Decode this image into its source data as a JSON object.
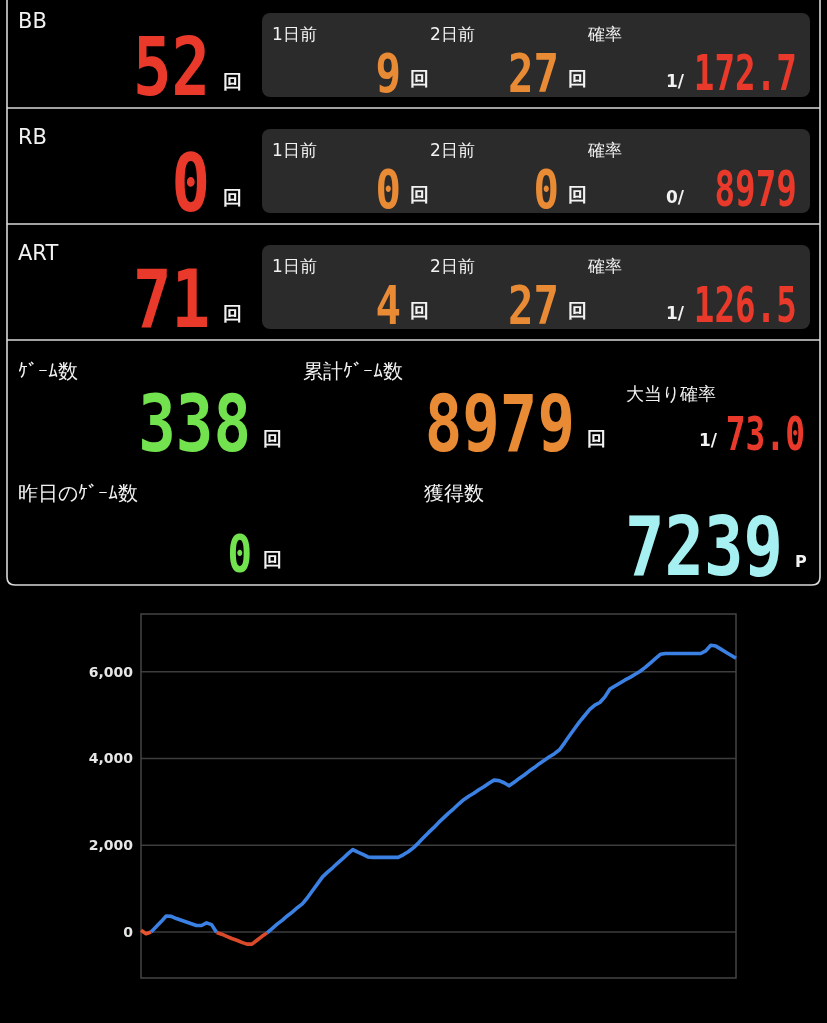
{
  "chart_data": [
    {
      "type": "other",
      "title": "BB",
      "annotations": [
        "52",
        "回",
        "1日前",
        "2日前",
        "確率",
        "9",
        "回",
        "27",
        "回",
        "1/",
        "172.7"
      ]
    },
    {
      "type": "other",
      "title": "RB",
      "annotations": [
        "0",
        "回",
        "1日前",
        "2日前",
        "確率",
        "0",
        "回",
        "0",
        "回",
        "0/",
        "8979"
      ]
    },
    {
      "type": "other",
      "title": "ART",
      "annotations": [
        "71",
        "回",
        "1日前",
        "2日前",
        "確率",
        "4",
        "回",
        "27",
        "回",
        "1/",
        "126.5"
      ]
    },
    {
      "type": "other",
      "annotations": [
        "ｹﾞｰﾑ数",
        "338",
        "回",
        "累計ｹﾞｰﾑ数",
        "8979",
        "回",
        "大当り確率",
        "1/",
        "73.0",
        "昨日のｹﾞｰﾑ数",
        "0",
        "回",
        "獲得数",
        "7239",
        "P"
      ]
    },
    {
      "type": "line",
      "categories": [
        null,
        null,
        null,
        null,
        null,
        null,
        null,
        null,
        null,
        null,
        null,
        null,
        null,
        null,
        null,
        null,
        null,
        null,
        null,
        null,
        null,
        null,
        null,
        null,
        null,
        null,
        null,
        null,
        null,
        null,
        null,
        null,
        null,
        null,
        null,
        null,
        null,
        null,
        null,
        null,
        null,
        null,
        null,
        null,
        null,
        null,
        null,
        null,
        null,
        null,
        null,
        null,
        null,
        null,
        null,
        null,
        null,
        null,
        null,
        null,
        null,
        null,
        null,
        null,
        null,
        null,
        null,
        null,
        null,
        null,
        null,
        null,
        null,
        null,
        null,
        null,
        null,
        null,
        null,
        null,
        null,
        null,
        null,
        null,
        null,
        null,
        null,
        null,
        null,
        null,
        null,
        null,
        null,
        null,
        null,
        null,
        null,
        null,
        null,
        null,
        null,
        null,
        null,
        null,
        null,
        null,
        null,
        null,
        null,
        null,
        null,
        null,
        null,
        null,
        null,
        null,
        null,
        null,
        null
      ],
      "series": [
        {
          "color": "#e65530",
          "values": [
            40,
            -40,
            0,
            null,
            null,
            null,
            null,
            null,
            null,
            null,
            null,
            null,
            null,
            null,
            null,
            null,
            null,
            null,
            null,
            null,
            null,
            null,
            null,
            null,
            null,
            null,
            null,
            null,
            null,
            null,
            null,
            null,
            null,
            null,
            null,
            null,
            null,
            null,
            null,
            null,
            null,
            null,
            null,
            null,
            null,
            null,
            null,
            null,
            null,
            null,
            null,
            null,
            null,
            null,
            null,
            null,
            null,
            null,
            null,
            null,
            null,
            null,
            null,
            null,
            null,
            null,
            null,
            null,
            null,
            null,
            null,
            null,
            null,
            null,
            null,
            null,
            null,
            null,
            null,
            null,
            null,
            null,
            null,
            null,
            null,
            null,
            null,
            null,
            null,
            null,
            null,
            null,
            null,
            null,
            null,
            null,
            null,
            null,
            null,
            null,
            null,
            null,
            null,
            null,
            null,
            null,
            null,
            null,
            null,
            null,
            null,
            null,
            null,
            null,
            null,
            null,
            null,
            null,
            null
          ]
        },
        {
          "color": "#3b80e3",
          "values": [
            null,
            null,
            0,
            120,
            240,
            370,
            360,
            310,
            270,
            230,
            190,
            150,
            150,
            210,
            170,
            -10,
            null,
            null,
            null,
            null,
            null,
            null,
            null,
            null,
            null,
            null,
            null,
            null,
            null,
            null,
            null,
            null,
            null,
            null,
            null,
            null,
            null,
            null,
            null,
            null,
            null,
            null,
            null,
            null,
            null,
            null,
            null,
            null,
            null,
            null,
            null,
            null,
            null,
            null,
            null,
            null,
            null,
            null,
            null,
            null,
            null,
            null,
            null,
            null,
            null,
            null,
            null,
            null,
            null,
            null,
            null,
            null,
            null,
            null,
            null,
            null,
            null,
            null,
            null,
            null,
            null,
            null,
            null,
            null,
            null,
            null,
            null,
            null,
            null,
            null,
            null,
            null,
            null,
            null,
            null,
            null,
            null,
            null,
            null,
            null,
            null,
            null,
            null,
            null,
            null,
            null,
            null,
            null,
            null,
            null,
            null,
            null,
            null,
            null,
            null,
            null,
            null,
            null,
            null
          ]
        },
        {
          "color": "#d94a2a",
          "values": [
            null,
            null,
            null,
            null,
            null,
            null,
            null,
            null,
            null,
            null,
            null,
            null,
            null,
            null,
            null,
            -10,
            -50,
            -100,
            -150,
            -190,
            -240,
            -280,
            -280,
            -190,
            -100,
            -20,
            null,
            null,
            null,
            null,
            null,
            null,
            null,
            null,
            null,
            null,
            null,
            null,
            null,
            null,
            null,
            null,
            null,
            null,
            null,
            null,
            null,
            null,
            null,
            null,
            null,
            null,
            null,
            null,
            null,
            null,
            null,
            null,
            null,
            null,
            null,
            null,
            null,
            null,
            null,
            null,
            null,
            null,
            null,
            null,
            null,
            null,
            null,
            null,
            null,
            null,
            null,
            null,
            null,
            null,
            null,
            null,
            null,
            null,
            null,
            null,
            null,
            null,
            null,
            null,
            null,
            null,
            null,
            null,
            null,
            null,
            null,
            null,
            null,
            null,
            null,
            null,
            null,
            null,
            null,
            null,
            null,
            null,
            null,
            null,
            null,
            null,
            null,
            null,
            null,
            null,
            null,
            null,
            null
          ]
        },
        {
          "color": "#3b80e3",
          "values": [
            null,
            null,
            null,
            null,
            null,
            null,
            null,
            null,
            null,
            null,
            null,
            null,
            null,
            null,
            null,
            null,
            null,
            null,
            null,
            null,
            null,
            null,
            null,
            null,
            null,
            -20,
            80,
            180,
            270,
            370,
            460,
            560,
            650,
            790,
            950,
            1110,
            1270,
            1380,
            1480,
            1590,
            1690,
            1800,
            1900,
            1840,
            1790,
            1730,
            1720,
            1720,
            1720,
            1720,
            1720,
            1720,
            1780,
            1850,
            1940,
            2050,
            2170,
            2290,
            2400,
            2520,
            2630,
            2740,
            2840,
            2950,
            3050,
            3130,
            3200,
            3280,
            3350,
            3430,
            3500,
            3490,
            3440,
            3370,
            3450,
            3540,
            3620,
            3710,
            3790,
            3880,
            3960,
            4040,
            4110,
            4200,
            4360,
            4530,
            4690,
            4850,
            4990,
            5130,
            5230,
            5290,
            5420,
            5600,
            5670,
            5740,
            5810,
            5870,
            5940,
            6010,
            6100,
            6200,
            6300,
            6400,
            6420,
            6420,
            6420,
            6420,
            6420,
            6420,
            6420,
            6420,
            6480,
            6610,
            6590,
            6520,
            6450,
            6380,
            6310
          ]
        }
      ],
      "ylim": [
        -1060,
        7330
      ],
      "yticks": [
        0,
        {
          "value": 2000,
          "label": "2,000"
        },
        {
          "value": 4000,
          "label": "4,000"
        },
        {
          "value": 6000,
          "label": "6,000"
        }
      ],
      "grid": "y",
      "tick_labels": "y"
    }
  ]
}
